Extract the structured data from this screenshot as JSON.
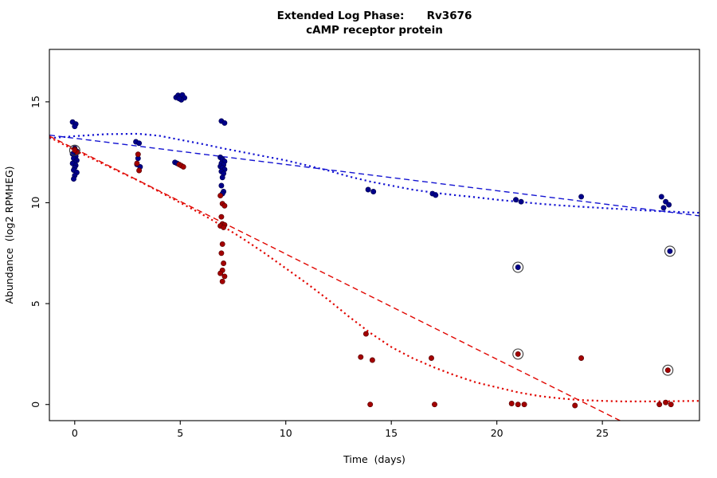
{
  "chart_data": {
    "type": "scatter",
    "title_line1": "Extended Log Phase:      Rv3676",
    "title_line2": "cAMP receptor protein",
    "xlabel": "Time  (days)",
    "ylabel": "Abundance  (log2 RPMHEG)",
    "xlim": [
      -1.2,
      29.6
    ],
    "ylim": [
      -0.8,
      17.6
    ],
    "xticks": [
      0,
      5,
      10,
      15,
      20,
      25
    ],
    "yticks": [
      0,
      5,
      10,
      15
    ],
    "grid": false,
    "legend": "none",
    "colors": {
      "blue": "#00008B",
      "blue_edge": "#000050",
      "red": "#A40000",
      "red_edge": "#5A0000",
      "blue_line": "#1414D2",
      "red_line": "#E10600",
      "circle_mark": "#3C3C3C"
    },
    "series": [
      {
        "name": "blue-condition",
        "color": "#00008B",
        "edge": "#000050",
        "points": [
          [
            -0.1,
            14.0
          ],
          [
            0.05,
            13.9
          ],
          [
            0,
            13.78
          ],
          [
            0,
            12.7
          ],
          [
            0.1,
            12.55
          ],
          [
            -0.1,
            12.42
          ],
          [
            0.05,
            12.3
          ],
          [
            -0.05,
            12.2
          ],
          [
            0.1,
            12.1
          ],
          [
            0,
            12.0
          ],
          [
            -0.1,
            11.95
          ],
          [
            0.05,
            11.85
          ],
          [
            0,
            11.75
          ],
          [
            -0.05,
            11.62
          ],
          [
            0.1,
            11.5
          ],
          [
            0,
            11.35
          ],
          [
            -0.05,
            11.18
          ],
          [
            2.9,
            13.02
          ],
          [
            3.05,
            12.95
          ],
          [
            3,
            12.2
          ],
          [
            2.95,
            11.9
          ],
          [
            3.1,
            11.78
          ],
          [
            4.8,
            15.22
          ],
          [
            4.9,
            15.32
          ],
          [
            5,
            15.26
          ],
          [
            5.1,
            15.34
          ],
          [
            5.2,
            15.2
          ],
          [
            5.05,
            15.1
          ],
          [
            4.95,
            15.16
          ],
          [
            4.75,
            12.0
          ],
          [
            4.85,
            11.95
          ],
          [
            6.95,
            14.05
          ],
          [
            7.1,
            13.95
          ],
          [
            6.9,
            12.25
          ],
          [
            7,
            12.15
          ],
          [
            7.1,
            12.05
          ],
          [
            6.95,
            11.95
          ],
          [
            7.05,
            11.88
          ],
          [
            6.9,
            11.8
          ],
          [
            7,
            11.74
          ],
          [
            7.1,
            11.65
          ],
          [
            6.95,
            11.55
          ],
          [
            7.05,
            11.45
          ],
          [
            7,
            11.25
          ],
          [
            6.95,
            10.85
          ],
          [
            7.05,
            10.55
          ],
          [
            7,
            10.45
          ],
          [
            13.9,
            10.65
          ],
          [
            14.15,
            10.55
          ],
          [
            16.95,
            10.45
          ],
          [
            17.1,
            10.38
          ],
          [
            20.9,
            10.15
          ],
          [
            21.15,
            10.05
          ],
          [
            24,
            10.3
          ],
          [
            27.8,
            10.3
          ],
          [
            28,
            10.05
          ],
          [
            28.15,
            9.9
          ],
          [
            27.9,
            9.75
          ]
        ]
      },
      {
        "name": "red-condition",
        "color": "#A40000",
        "edge": "#5A0000",
        "points": [
          [
            0,
            12.65
          ],
          [
            0.12,
            12.5
          ],
          [
            3,
            12.4
          ],
          [
            2.95,
            11.95
          ],
          [
            3.05,
            11.6
          ],
          [
            4.95,
            11.9
          ],
          [
            5.05,
            11.84
          ],
          [
            5.15,
            11.78
          ],
          [
            6.9,
            10.35
          ],
          [
            7,
            9.95
          ],
          [
            7.1,
            9.85
          ],
          [
            6.95,
            9.3
          ],
          [
            7,
            8.95
          ],
          [
            7.1,
            8.9
          ],
          [
            6.9,
            8.85
          ],
          [
            7.05,
            8.78
          ],
          [
            7,
            7.95
          ],
          [
            6.95,
            7.5
          ],
          [
            7.05,
            7.0
          ],
          [
            7,
            6.65
          ],
          [
            6.9,
            6.5
          ],
          [
            7.1,
            6.35
          ],
          [
            7,
            6.1
          ],
          [
            13.8,
            3.5
          ],
          [
            13.55,
            2.35
          ],
          [
            14.1,
            2.2
          ],
          [
            14,
            0.0
          ],
          [
            16.9,
            2.3
          ],
          [
            17.05,
            0.0
          ],
          [
            20.7,
            0.05
          ],
          [
            21,
            0.0
          ],
          [
            21.3,
            0.0
          ],
          [
            24,
            2.3
          ],
          [
            23.7,
            -0.05
          ],
          [
            27.7,
            0.0
          ],
          [
            28,
            0.1
          ],
          [
            28.25,
            0.0
          ]
        ]
      }
    ],
    "circled_points": [
      {
        "x": 0,
        "y": 12.6,
        "series": "red"
      },
      {
        "x": 21,
        "y": 6.8,
        "series": "blue"
      },
      {
        "x": 21,
        "y": 2.5,
        "series": "red"
      },
      {
        "x": 28.2,
        "y": 7.6,
        "series": "blue"
      },
      {
        "x": 28.1,
        "y": 1.7,
        "series": "red"
      }
    ],
    "lines": [
      {
        "name": "blue-dashed-fit",
        "color": "#1414D2",
        "style": "dashed",
        "points": [
          [
            -1.2,
            13.35
          ],
          [
            29.6,
            9.35
          ]
        ]
      },
      {
        "name": "blue-dotted-fit",
        "color": "#1414D2",
        "style": "dotted",
        "points": [
          [
            -1.2,
            13.2
          ],
          [
            0,
            13.3
          ],
          [
            1.5,
            13.4
          ],
          [
            3,
            13.42
          ],
          [
            4,
            13.32
          ],
          [
            5,
            13.12
          ],
          [
            6,
            12.92
          ],
          [
            7,
            12.7
          ],
          [
            8,
            12.5
          ],
          [
            9,
            12.3
          ],
          [
            10,
            12.1
          ],
          [
            11,
            11.85
          ],
          [
            12,
            11.6
          ],
          [
            13,
            11.3
          ],
          [
            14,
            11.05
          ],
          [
            15,
            10.85
          ],
          [
            16,
            10.65
          ],
          [
            17,
            10.5
          ],
          [
            18,
            10.38
          ],
          [
            19,
            10.27
          ],
          [
            20,
            10.15
          ],
          [
            21,
            10.05
          ],
          [
            22,
            9.95
          ],
          [
            23,
            9.87
          ],
          [
            24,
            9.8
          ],
          [
            25,
            9.74
          ],
          [
            26,
            9.68
          ],
          [
            27,
            9.62
          ],
          [
            28,
            9.57
          ],
          [
            29.6,
            9.5
          ]
        ]
      },
      {
        "name": "red-dashed-fit",
        "color": "#E10600",
        "style": "dashed",
        "points": [
          [
            -1.2,
            13.3
          ],
          [
            26.8,
            -1.3
          ]
        ]
      },
      {
        "name": "red-dotted-fit",
        "color": "#E10600",
        "style": "dotted",
        "points": [
          [
            -1.2,
            13.25
          ],
          [
            0,
            12.6
          ],
          [
            1,
            12.1
          ],
          [
            2,
            11.6
          ],
          [
            3,
            11.1
          ],
          [
            4,
            10.55
          ],
          [
            5,
            10.0
          ],
          [
            6,
            9.45
          ],
          [
            7,
            8.85
          ],
          [
            8,
            8.2
          ],
          [
            9,
            7.5
          ],
          [
            10,
            6.75
          ],
          [
            11,
            6.0
          ],
          [
            12,
            5.2
          ],
          [
            13,
            4.35
          ],
          [
            14,
            3.55
          ],
          [
            15,
            2.85
          ],
          [
            16,
            2.3
          ],
          [
            17,
            1.85
          ],
          [
            18,
            1.45
          ],
          [
            19,
            1.1
          ],
          [
            20,
            0.85
          ],
          [
            21,
            0.6
          ],
          [
            22,
            0.42
          ],
          [
            23,
            0.3
          ],
          [
            24,
            0.22
          ],
          [
            25,
            0.18
          ],
          [
            26,
            0.15
          ],
          [
            27,
            0.15
          ],
          [
            28,
            0.16
          ],
          [
            29.6,
            0.18
          ]
        ]
      }
    ]
  }
}
